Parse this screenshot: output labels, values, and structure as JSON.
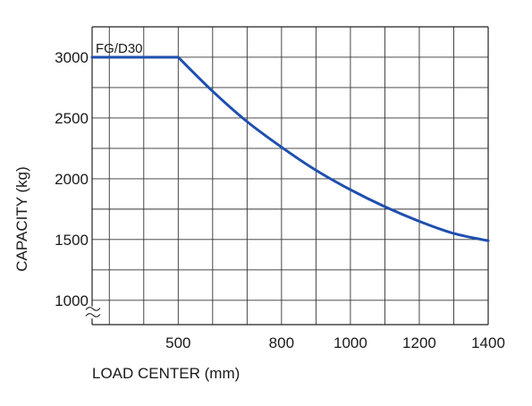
{
  "chart_data": {
    "type": "line",
    "title": "",
    "xlabel": "LOAD CENTER (mm)",
    "ylabel": "CAPACITY (kg)",
    "x_tick_labels": [
      "500",
      "800",
      "1000",
      "1200",
      "1400"
    ],
    "y_tick_labels": [
      "1000",
      "1500",
      "2000",
      "2500",
      "3000"
    ],
    "xlim": [
      250,
      1400
    ],
    "ylim": [
      800,
      3250
    ],
    "y_axis_break": true,
    "grid": true,
    "series": [
      {
        "name": "FG/D30",
        "color": "#1f4fb0",
        "x": [
          250,
          500,
          600,
          700,
          800,
          900,
          1000,
          1100,
          1200,
          1300,
          1400
        ],
        "y": [
          3000,
          3000,
          2720,
          2470,
          2260,
          2070,
          1910,
          1770,
          1650,
          1550,
          1490
        ]
      }
    ]
  }
}
